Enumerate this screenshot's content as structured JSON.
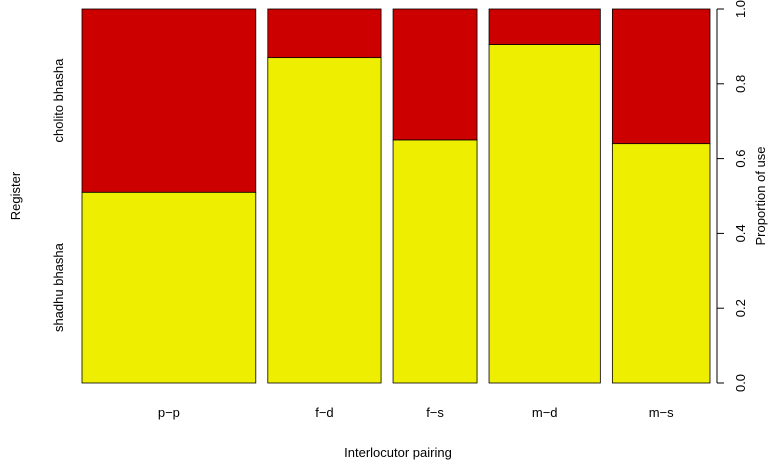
{
  "chart_data": {
    "type": "bar",
    "stacked": true,
    "title": "",
    "xlabel": "Interlocutor pairing",
    "ylabel_left": "Register",
    "ylabel_right": "Proportion of use",
    "categories": [
      "p−p",
      "f−d",
      "f−s",
      "m−d",
      "m−s"
    ],
    "category_width_weights": [
      1.78,
      1.16,
      0.86,
      1.14,
      1.0
    ],
    "series": [
      {
        "name": "shadhu bhasha",
        "color": "#EEEE00",
        "values": [
          0.51,
          0.87,
          0.65,
          0.905,
          0.64
        ]
      },
      {
        "name": "cholito bhasha",
        "color": "#CD0000",
        "values": [
          0.49,
          0.13,
          0.35,
          0.095,
          0.36
        ]
      }
    ],
    "ylim": [
      0,
      1
    ],
    "yticks": [
      "0.0",
      "0.2",
      "0.4",
      "0.6",
      "0.8",
      "1.0"
    ],
    "grid": false,
    "legend": "none"
  }
}
